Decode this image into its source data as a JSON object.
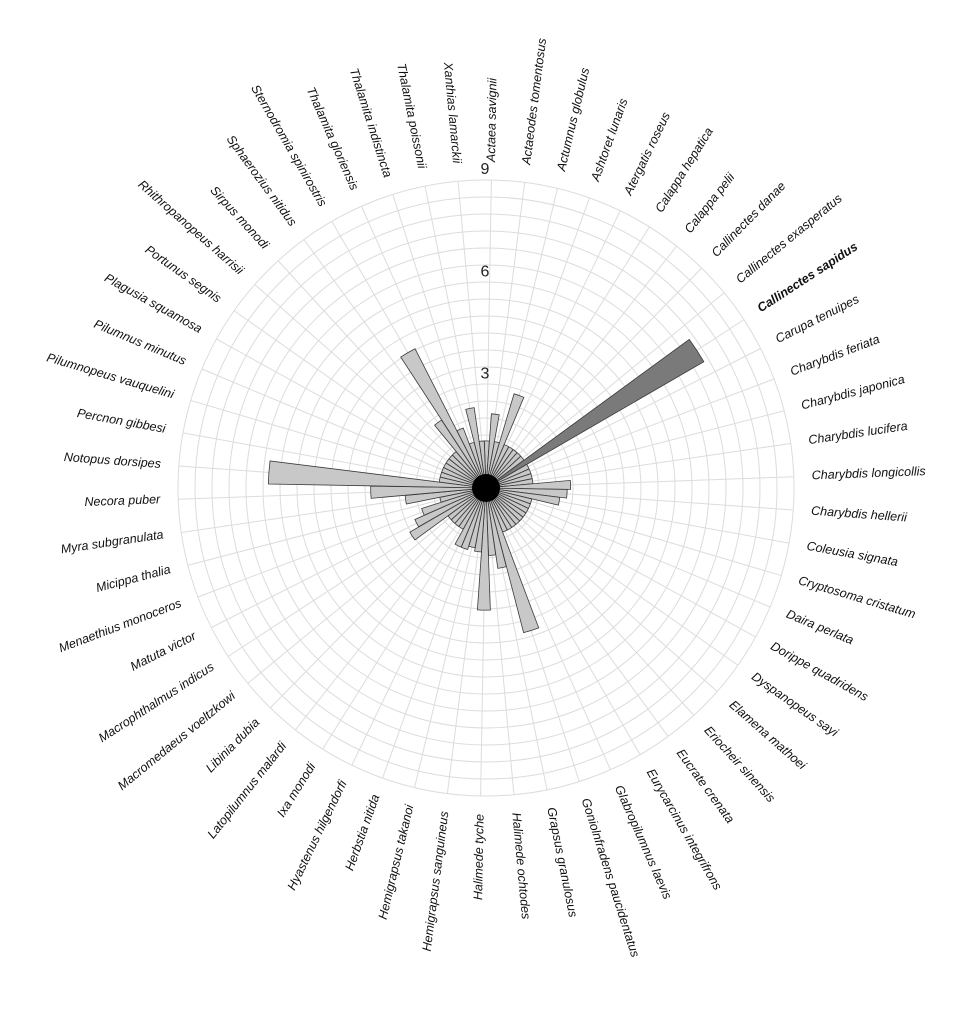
{
  "chart_data": {
    "type": "bar",
    "subtype": "radial",
    "ylim": [
      0,
      9
    ],
    "rtick_labels": [
      "3",
      "6",
      "9"
    ],
    "rticks": [
      3,
      6,
      9
    ],
    "grid": true,
    "highlight_category": "Callinectes sapidus",
    "colors": {
      "bar": "#c8c8c8",
      "highlight": "#7a7a7a",
      "grid": "#dcdcdc",
      "hub": "#000000"
    },
    "categories": [
      "Actaea savignii",
      "Actaeodes tomentosus",
      "Actumnus globulus",
      "Ashtoret lunaris",
      "Atergatis roseus",
      "Calappa hepatica",
      "Calappa pelii",
      "Callinectes danae",
      "Callinectes exasperatus",
      "Callinectes sapidus",
      "Carupa tenuipes",
      "Charybdis feriata",
      "Charybdis japonica",
      "Charybdis lucifera",
      "Charybdis longicollis",
      "Charybdis hellerii",
      "Coleusia signata",
      "Cryptosoma cristatum",
      "Daira perlata",
      "Dorippe quadridens",
      "Dyspanopeus sayi",
      "Elamena mathoei",
      "Eriocheir sinensis",
      "Eucrate crenata",
      "Eurycarcinus integrifrons",
      "Glabropilumnus laevis",
      "Goniolnfradens paucidentatus",
      "Grapsus granulosus",
      "Halimede ochtodes",
      "Halimede tyche",
      "Hemigrapsus sanguineus",
      "Hemigrapsus takanoi",
      "Herbstia nitida",
      "Hyastenus hilgendorfi",
      "Ixa monodi",
      "Latopilumnus malardi",
      "Libinia dubia",
      "Macromedaeus voeltzkowi",
      "Macrophthalmus indicus",
      "Matuta victor",
      "Menaethius monoceros",
      "Micippa thalia",
      "Myra subgranulata",
      "Necora puber",
      "Notopus dorsipes",
      "Percnon gibbesi",
      "Pilumnopeus vauquelini",
      "Pilumnus minutus",
      "Plagusia squamosa",
      "Portunus segnis",
      "Rhithropanopeus harrisii",
      "Sirpus monodi",
      "Sphaerozius nitidus",
      "Sternodromia spinirostris",
      "Thalamita gloriensis",
      "Thalamita indistincta",
      "Thalamita poissonii",
      "Xanthias lamarckii"
    ],
    "values": [
      1,
      1.8,
      1,
      2.5,
      1,
      1,
      1,
      1,
      1,
      7.0,
      1,
      1,
      1,
      1,
      2.1,
      2.0,
      1.8,
      1,
      1,
      1,
      1,
      1,
      1,
      1,
      1,
      1,
      4.0,
      2.0,
      1.6,
      3.2,
      1.5,
      1.4,
      1.5,
      1.5,
      1,
      1,
      1,
      1,
      2.2,
      1.9,
      1.6,
      1,
      2.0,
      3.0,
      6.0,
      1,
      1,
      1,
      1,
      1,
      1,
      1,
      2.0,
      4.2,
      1.5,
      1,
      2.0,
      1
    ]
  }
}
